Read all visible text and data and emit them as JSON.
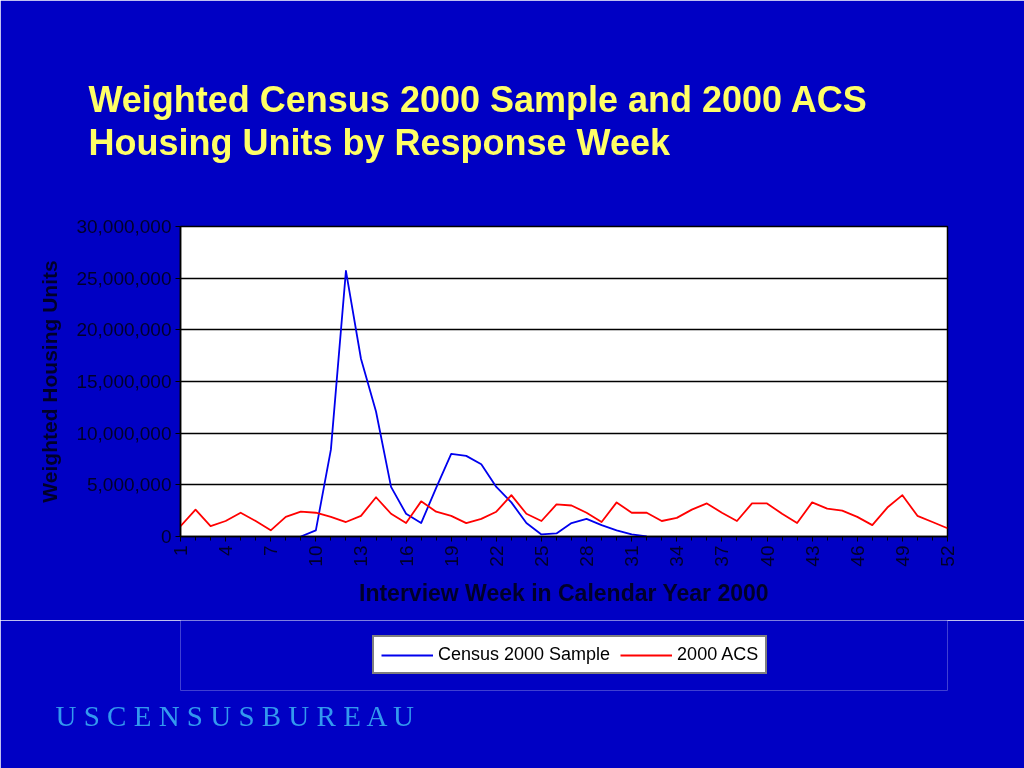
{
  "chart_data": {
    "type": "line",
    "title": "Weighted Census 2000 Sample and 2000 ACS Housing Units by Response Week",
    "xlabel": "Interview Week in Calendar Year 2000",
    "ylabel": "Weighted Housing Units",
    "x": [
      1,
      2,
      3,
      4,
      5,
      6,
      7,
      8,
      9,
      10,
      11,
      12,
      13,
      14,
      15,
      16,
      17,
      18,
      19,
      20,
      21,
      22,
      23,
      24,
      25,
      26,
      27,
      28,
      29,
      30,
      31,
      32,
      33,
      34,
      35,
      36,
      37,
      38,
      39,
      40,
      41,
      42,
      43,
      44,
      45,
      46,
      47,
      48,
      49,
      50,
      51,
      52
    ],
    "xlim": [
      1,
      52
    ],
    "xticks": [
      1,
      4,
      7,
      10,
      13,
      16,
      19,
      22,
      25,
      28,
      31,
      34,
      37,
      40,
      43,
      46,
      49,
      52
    ],
    "ylim": [
      0,
      30000000
    ],
    "yticks": [
      0,
      {
        "value": 5000000,
        "label": "5,000,000"
      },
      {
        "value": 10000000,
        "label": "10,000,000"
      },
      {
        "value": 15000000,
        "label": "15,000,000"
      },
      {
        "value": 20000000,
        "label": "20,000,000"
      },
      {
        "value": 25000000,
        "label": "25,000,000"
      },
      {
        "value": 30000000,
        "label": "30,000,000"
      }
    ],
    "grid": "y",
    "legend": "bottom",
    "series": [
      {
        "name": "Census 2000 Sample",
        "color": "#0000ee",
        "values": [
          null,
          null,
          null,
          null,
          null,
          null,
          null,
          null,
          0,
          600000,
          8400000,
          25700000,
          17200000,
          12100000,
          4800000,
          2200000,
          1300000,
          4700000,
          8000000,
          7800000,
          7000000,
          4800000,
          3300000,
          1300000,
          200000,
          300000,
          1300000,
          1700000,
          1100000,
          600000,
          200000,
          0,
          null,
          null,
          null,
          null,
          null,
          null,
          null,
          null,
          null,
          null,
          null,
          null,
          null,
          null,
          null,
          null,
          null,
          null,
          null,
          null
        ]
      },
      {
        "name": "2000 ACS",
        "color": "#ff0000",
        "values": [
          1000000,
          2600000,
          1000000,
          1500000,
          2300000,
          1500000,
          600000,
          1900000,
          2400000,
          2300000,
          1900000,
          1400000,
          2000000,
          3800000,
          2200000,
          1300000,
          3400000,
          2400000,
          2000000,
          1300000,
          1700000,
          2400000,
          4000000,
          2200000,
          1500000,
          3100000,
          3000000,
          2300000,
          1400000,
          3300000,
          2300000,
          2300000,
          1500000,
          1800000,
          2600000,
          3200000,
          2300000,
          1500000,
          3200000,
          3200000,
          2200000,
          1300000,
          3300000,
          2700000,
          2500000,
          1900000,
          1100000,
          2800000,
          4000000,
          2000000,
          1400000,
          800000
        ]
      }
    ],
    "annotations": [
      "U S C E N S U S B U R E A U"
    ]
  }
}
